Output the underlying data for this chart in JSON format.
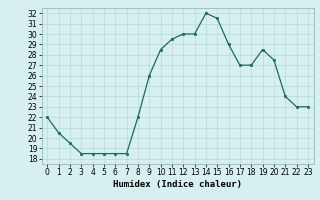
{
  "x": [
    0,
    1,
    2,
    3,
    4,
    5,
    6,
    7,
    8,
    9,
    10,
    11,
    12,
    13,
    14,
    15,
    16,
    17,
    18,
    19,
    20,
    21,
    22,
    23
  ],
  "y": [
    22,
    20.5,
    19.5,
    18.5,
    18.5,
    18.5,
    18.5,
    18.5,
    22,
    26,
    28.5,
    29.5,
    30,
    30,
    32,
    31.5,
    29,
    27,
    27,
    28.5,
    27.5,
    24,
    23,
    23
  ],
  "line_color": "#1a6b5a",
  "marker": "s",
  "marker_size": 2.0,
  "bg_color": "#d6f0f0",
  "grid_color": "#b8d8d8",
  "xlabel": "Humidex (Indice chaleur)",
  "ylim": [
    17.5,
    32.5
  ],
  "xlim": [
    -0.5,
    23.5
  ],
  "yticks": [
    18,
    19,
    20,
    21,
    22,
    23,
    24,
    25,
    26,
    27,
    28,
    29,
    30,
    31,
    32
  ],
  "xticks": [
    0,
    1,
    2,
    3,
    4,
    5,
    6,
    7,
    8,
    9,
    10,
    11,
    12,
    13,
    14,
    15,
    16,
    17,
    18,
    19,
    20,
    21,
    22,
    23
  ],
  "tick_fontsize": 5.5,
  "xlabel_fontsize": 6.5
}
